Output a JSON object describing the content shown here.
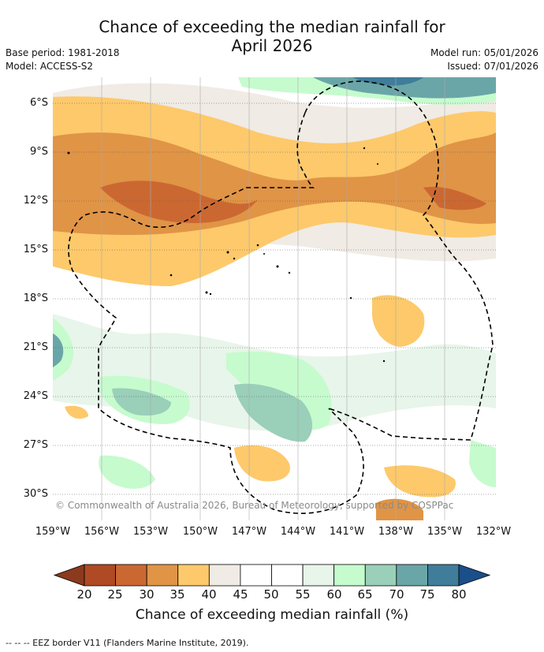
{
  "title_line1": "Chance of exceeding the median rainfall for",
  "title_line2": "April 2026",
  "base_period": "Base period: 1981-2018",
  "model": "Model: ACCESS-S2",
  "model_run": "Model run: 05/01/2026",
  "issued": "Issued: 07/01/2026",
  "copyright": "© Commonwealth of Australia 2026, Bureau of Meteorology, supported by COSPPac",
  "lat_labels": [
    "6°S",
    "9°S",
    "12°S",
    "15°S",
    "18°S",
    "21°S",
    "24°S",
    "27°S",
    "30°S"
  ],
  "lon_labels": [
    "159°W",
    "156°W",
    "153°W",
    "150°W",
    "147°W",
    "144°W",
    "141°W",
    "138°W",
    "135°W",
    "132°W"
  ],
  "colorbar": {
    "title": "Chance of exceeding median rainfall (%)",
    "labels": [
      "20",
      "25",
      "30",
      "35",
      "40",
      "45",
      "50",
      "55",
      "60",
      "65",
      "70",
      "75",
      "80"
    ],
    "colors": [
      "#8b3a1e",
      "#b04a24",
      "#cb6832",
      "#e09446",
      "#fdc96b",
      "#f0ebe5",
      "#ffffff",
      "#ffffff",
      "#e8f5ea",
      "#c6fbce",
      "#9acfb9",
      "#6aa6a8",
      "#3f7d9a",
      "#1b4f8a"
    ]
  },
  "footer": "--  --  -- EEZ border V11 (Flanders Marine Institute, 2019)."
}
